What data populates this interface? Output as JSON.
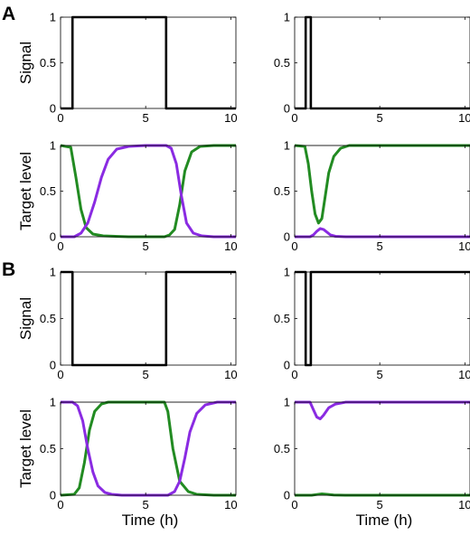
{
  "figure": {
    "panel_labels": [
      "A",
      "B"
    ]
  },
  "colors": {
    "signal": "#000000",
    "target_1": "#8a2be2",
    "target_2": "#228b22"
  },
  "chart_data": [
    {
      "id": "A-signal-left",
      "panel": "A",
      "type": "line",
      "xlabel": "",
      "ylabel": "Signal",
      "xlim": [
        0,
        10.3
      ],
      "ylim": [
        0,
        1
      ],
      "xticks": [
        0,
        5,
        10
      ],
      "yticks": [
        0,
        0.5,
        1
      ],
      "ytick_labels": [
        "0",
        "0.5",
        "1"
      ],
      "series": [
        {
          "key": "signal",
          "x": [
            0,
            0.7,
            0.7,
            6.2,
            6.2,
            10.3
          ],
          "y": [
            0,
            0,
            1,
            1,
            0,
            0
          ]
        }
      ]
    },
    {
      "id": "A-signal-right",
      "panel": "A",
      "type": "line",
      "xlabel": "",
      "ylabel": "",
      "xlim": [
        0,
        10.3
      ],
      "ylim": [
        0,
        1
      ],
      "xticks": [
        0,
        5,
        10
      ],
      "yticks": [
        0,
        0.5,
        1
      ],
      "ytick_labels": [
        "0",
        "0.5",
        "1"
      ],
      "series": [
        {
          "key": "signal",
          "x": [
            0,
            0.65,
            0.65,
            0.95,
            0.95,
            10.3
          ],
          "y": [
            0,
            0,
            1,
            1,
            0,
            0
          ]
        }
      ]
    },
    {
      "id": "A-target-left",
      "panel": "A",
      "type": "line",
      "xlabel": "",
      "ylabel": "Target level",
      "xlim": [
        0,
        10.3
      ],
      "ylim": [
        0,
        1
      ],
      "xticks": [
        0,
        5,
        10
      ],
      "yticks": [
        0,
        0.5,
        1
      ],
      "ytick_labels": [
        "0",
        "0.5",
        "1"
      ],
      "refline": 1,
      "series": [
        {
          "key": "target_2",
          "x": [
            0,
            0.6,
            0.9,
            1.2,
            1.5,
            1.9,
            2.5,
            4,
            6.1,
            6.4,
            6.7,
            7.0,
            7.3,
            7.7,
            8.2,
            9,
            10.3
          ],
          "y": [
            1,
            0.98,
            0.65,
            0.3,
            0.1,
            0.03,
            0.01,
            0,
            0,
            0.02,
            0.08,
            0.35,
            0.72,
            0.93,
            0.99,
            1,
            1
          ]
        },
        {
          "key": "target_1",
          "x": [
            0,
            0.8,
            1.2,
            1.6,
            2.0,
            2.4,
            2.8,
            3.3,
            4,
            5,
            6.2,
            6.5,
            6.8,
            7.1,
            7.4,
            7.8,
            8.3,
            9,
            10.3
          ],
          "y": [
            0,
            0,
            0.04,
            0.15,
            0.38,
            0.65,
            0.85,
            0.96,
            0.99,
            1,
            1,
            0.97,
            0.8,
            0.45,
            0.15,
            0.04,
            0.01,
            0,
            0
          ]
        }
      ]
    },
    {
      "id": "A-target-right",
      "panel": "A",
      "type": "line",
      "xlabel": "",
      "ylabel": "",
      "xlim": [
        0,
        10.3
      ],
      "ylim": [
        0,
        1
      ],
      "xticks": [
        0,
        5,
        10
      ],
      "yticks": [
        0,
        0.5,
        1
      ],
      "ytick_labels": [
        "0",
        "0.5",
        "1"
      ],
      "refline": 1,
      "series": [
        {
          "key": "target_2",
          "x": [
            0,
            0.6,
            0.8,
            1.0,
            1.2,
            1.4,
            1.6,
            1.8,
            2.0,
            2.3,
            2.7,
            3.2,
            4,
            10.3
          ],
          "y": [
            1,
            0.99,
            0.8,
            0.5,
            0.25,
            0.15,
            0.2,
            0.45,
            0.7,
            0.88,
            0.97,
            1,
            1,
            1
          ]
        },
        {
          "key": "target_1",
          "x": [
            0,
            0.9,
            1.1,
            1.3,
            1.5,
            1.7,
            1.9,
            2.1,
            2.4,
            3,
            10.3
          ],
          "y": [
            0,
            0,
            0.02,
            0.06,
            0.09,
            0.08,
            0.05,
            0.02,
            0.005,
            0,
            0
          ]
        }
      ]
    },
    {
      "id": "B-signal-left",
      "panel": "B",
      "type": "line",
      "xlabel": "",
      "ylabel": "Signal",
      "xlim": [
        0,
        10.3
      ],
      "ylim": [
        0,
        1
      ],
      "xticks": [
        0,
        5,
        10
      ],
      "yticks": [
        0,
        0.5,
        1
      ],
      "ytick_labels": [
        "0",
        "0.5",
        "1"
      ],
      "series": [
        {
          "key": "signal",
          "x": [
            0,
            0.7,
            0.7,
            6.2,
            6.2,
            10.3
          ],
          "y": [
            1,
            1,
            0,
            0,
            1,
            1
          ]
        }
      ]
    },
    {
      "id": "B-signal-right",
      "panel": "B",
      "type": "line",
      "xlabel": "",
      "ylabel": "",
      "xlim": [
        0,
        10.3
      ],
      "ylim": [
        0,
        1
      ],
      "xticks": [
        0,
        5,
        10
      ],
      "yticks": [
        0,
        0.5,
        1
      ],
      "ytick_labels": [
        "0",
        "0.5",
        "1"
      ],
      "series": [
        {
          "key": "signal",
          "x": [
            0,
            0.65,
            0.65,
            0.95,
            0.95,
            10.3
          ],
          "y": [
            1,
            1,
            0,
            0,
            1,
            1
          ]
        }
      ]
    },
    {
      "id": "B-target-left",
      "panel": "B",
      "type": "line",
      "xlabel": "Time (h)",
      "ylabel": "Target level",
      "xlim": [
        0,
        10.3
      ],
      "ylim": [
        0,
        1
      ],
      "xticks": [
        0,
        5,
        10
      ],
      "yticks": [
        0,
        0.5,
        1
      ],
      "ytick_labels": [
        "0",
        "0.5",
        "1"
      ],
      "refline": 1,
      "series": [
        {
          "key": "target_2",
          "x": [
            0,
            0.8,
            1.1,
            1.4,
            1.7,
            2.0,
            2.4,
            2.8,
            3.5,
            6.1,
            6.3,
            6.6,
            7.0,
            7.5,
            8.0,
            9,
            10.3
          ],
          "y": [
            0,
            0.01,
            0.08,
            0.35,
            0.7,
            0.9,
            0.98,
            1,
            1,
            1,
            0.9,
            0.5,
            0.15,
            0.04,
            0.01,
            0,
            0
          ]
        },
        {
          "key": "target_1",
          "x": [
            0,
            0.7,
            1.0,
            1.3,
            1.6,
            1.9,
            2.2,
            2.6,
            3.0,
            3.6,
            6.3,
            6.7,
            7.0,
            7.3,
            7.6,
            8.0,
            8.5,
            9.2,
            10.3
          ],
          "y": [
            1,
            1,
            0.96,
            0.8,
            0.5,
            0.25,
            0.1,
            0.03,
            0.01,
            0,
            0,
            0.04,
            0.15,
            0.4,
            0.68,
            0.88,
            0.97,
            1,
            1
          ]
        }
      ]
    },
    {
      "id": "B-target-right",
      "panel": "B",
      "type": "line",
      "xlabel": "Time (h)",
      "ylabel": "",
      "xlim": [
        0,
        10.3
      ],
      "ylim": [
        0,
        1
      ],
      "xticks": [
        0,
        5,
        10
      ],
      "yticks": [
        0,
        0.5,
        1
      ],
      "ytick_labels": [
        "0",
        "0.5",
        "1"
      ],
      "refline": 1,
      "series": [
        {
          "key": "target_2",
          "x": [
            0,
            1.0,
            1.3,
            1.6,
            1.9,
            2.3,
            3,
            10.3
          ],
          "y": [
            0,
            0,
            0.008,
            0.015,
            0.01,
            0.003,
            0,
            0
          ]
        },
        {
          "key": "target_1",
          "x": [
            0,
            0.9,
            1.1,
            1.3,
            1.5,
            1.7,
            2.0,
            2.4,
            3.0,
            4,
            10.3
          ],
          "y": [
            1,
            1,
            0.92,
            0.84,
            0.82,
            0.86,
            0.94,
            0.98,
            1,
            1,
            1
          ]
        }
      ]
    }
  ]
}
